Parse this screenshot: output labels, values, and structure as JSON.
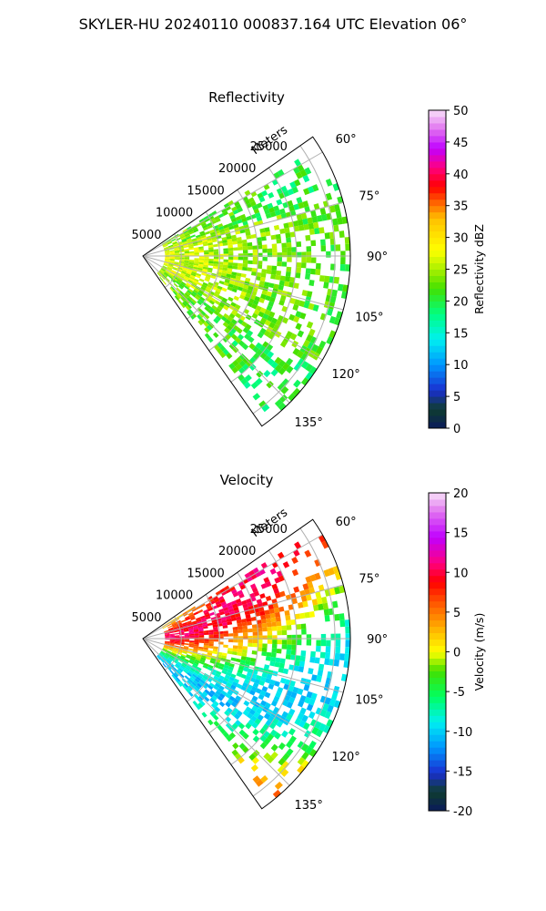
{
  "suptitle": "SKYLER-HU  20240110  000837.164 UTC Elevation 06°",
  "chart_data": [
    {
      "type": "heatmap",
      "subtype": "polar-sector-ppi",
      "title": "Reflectivity",
      "radial_label": "Meters",
      "radial_ticks": [
        5000,
        10000,
        15000,
        20000,
        25000
      ],
      "radial_tick_labels": [
        "5000",
        "10000",
        "15000",
        "20000",
        "25000"
      ],
      "r_max": 27000,
      "azimuth_range": [
        55,
        145
      ],
      "azimuth_ticks": [
        60,
        75,
        90,
        105,
        120,
        135
      ],
      "azimuth_tick_labels": [
        "60°",
        "75°",
        "90°",
        "105°",
        "120°",
        "135°"
      ],
      "colorbar": {
        "label": "Reflectivity dBZ",
        "range": [
          0,
          50
        ],
        "ticks": [
          0,
          5,
          10,
          15,
          20,
          25,
          30,
          35,
          40,
          45,
          50
        ],
        "tick_labels": [
          "0",
          "5",
          "10",
          "15",
          "20",
          "25",
          "30",
          "35",
          "40",
          "45",
          "50"
        ]
      },
      "grid": true
    },
    {
      "type": "heatmap",
      "subtype": "polar-sector-ppi",
      "title": "Velocity",
      "radial_label": "Meters",
      "radial_ticks": [
        5000,
        10000,
        15000,
        20000,
        25000
      ],
      "radial_tick_labels": [
        "5000",
        "10000",
        "15000",
        "20000",
        "25000"
      ],
      "r_max": 27000,
      "azimuth_range": [
        55,
        145
      ],
      "azimuth_ticks": [
        60,
        75,
        90,
        105,
        120,
        135
      ],
      "azimuth_tick_labels": [
        "60°",
        "75°",
        "90°",
        "105°",
        "120°",
        "135°"
      ],
      "colorbar": {
        "label": "Velocity (m/s)",
        "range": [
          -20,
          20
        ],
        "ticks": [
          -20,
          -15,
          -10,
          -5,
          0,
          5,
          10,
          15,
          20
        ],
        "tick_labels": [
          "-20",
          "-15",
          "-10",
          "-5",
          "0",
          "5",
          "10",
          "15",
          "20"
        ]
      },
      "grid": true
    }
  ]
}
